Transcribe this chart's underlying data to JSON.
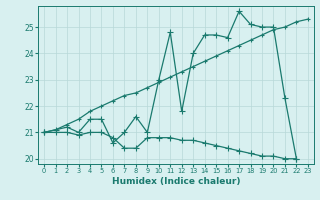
{
  "x_humidex": [
    0,
    1,
    2,
    3,
    4,
    5,
    6,
    7,
    8,
    9,
    10,
    11,
    12,
    13,
    14,
    15,
    16,
    17,
    18,
    19,
    20,
    21,
    22,
    23
  ],
  "line1_y": [
    21.0,
    21.0,
    21.0,
    20.9,
    21.0,
    21.0,
    20.8,
    20.4,
    20.4,
    20.8,
    20.8,
    20.8,
    20.7,
    20.7,
    20.6,
    20.5,
    20.4,
    20.3,
    20.2,
    20.1,
    20.1,
    20.0,
    20.0,
    null
  ],
  "line2_y": [
    21.0,
    21.1,
    21.2,
    21.0,
    21.5,
    21.5,
    20.6,
    21.0,
    21.6,
    21.0,
    23.0,
    24.8,
    21.8,
    24.0,
    24.7,
    24.7,
    24.6,
    25.6,
    25.1,
    25.0,
    25.0,
    22.3,
    20.0,
    null
  ],
  "line3_y": [
    21.0,
    21.1,
    21.3,
    21.5,
    21.8,
    22.0,
    22.2,
    22.4,
    22.5,
    22.7,
    22.9,
    23.1,
    23.3,
    23.5,
    23.7,
    23.9,
    24.1,
    24.3,
    24.5,
    24.7,
    24.9,
    25.0,
    25.2,
    25.3
  ],
  "color_main": "#1a7a6e",
  "background": "#d8f0f0",
  "grid_color": "#b8d8d8",
  "xlabel": "Humidex (Indice chaleur)",
  "ylim": [
    19.8,
    25.8
  ],
  "xlim": [
    -0.5,
    23.5
  ],
  "yticks": [
    20,
    21,
    22,
    23,
    24,
    25
  ],
  "xticks": [
    0,
    1,
    2,
    3,
    4,
    5,
    6,
    7,
    8,
    9,
    10,
    11,
    12,
    13,
    14,
    15,
    16,
    17,
    18,
    19,
    20,
    21,
    22,
    23
  ],
  "marker_size": 2.5,
  "line_width": 0.9
}
